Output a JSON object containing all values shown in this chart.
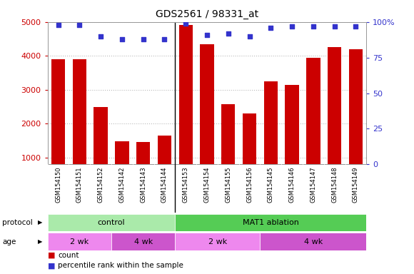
{
  "title": "GDS2561 / 98331_at",
  "samples": [
    "GSM154150",
    "GSM154151",
    "GSM154152",
    "GSM154142",
    "GSM154143",
    "GSM154144",
    "GSM154153",
    "GSM154154",
    "GSM154155",
    "GSM154156",
    "GSM154145",
    "GSM154146",
    "GSM154147",
    "GSM154148",
    "GSM154149"
  ],
  "counts": [
    3900,
    3900,
    2500,
    1480,
    1460,
    1650,
    4900,
    4350,
    2580,
    2300,
    3250,
    3150,
    3950,
    4250,
    4200
  ],
  "percentile_ranks": [
    98,
    98,
    90,
    88,
    88,
    88,
    99,
    91,
    92,
    90,
    96,
    97,
    97,
    97,
    97
  ],
  "bar_color": "#cc0000",
  "dot_color": "#3333cc",
  "ylim_left": [
    800,
    5000
  ],
  "ylim_right": [
    0,
    100
  ],
  "yticks_left": [
    1000,
    2000,
    3000,
    4000,
    5000
  ],
  "yticks_right": [
    0,
    25,
    50,
    75,
    100
  ],
  "protocol_groups": [
    {
      "label": "control",
      "start": 0,
      "end": 6,
      "color": "#aaeaaa"
    },
    {
      "label": "MAT1 ablation",
      "start": 6,
      "end": 15,
      "color": "#55cc55"
    }
  ],
  "age_groups": [
    {
      "label": "2 wk",
      "start": 0,
      "end": 3,
      "color": "#ee88ee"
    },
    {
      "label": "4 wk",
      "start": 3,
      "end": 6,
      "color": "#cc55cc"
    },
    {
      "label": "2 wk",
      "start": 6,
      "end": 10,
      "color": "#ee88ee"
    },
    {
      "label": "4 wk",
      "start": 10,
      "end": 15,
      "color": "#cc55cc"
    }
  ],
  "legend_count_color": "#cc0000",
  "legend_pct_color": "#3333cc",
  "grid_color": "#bbbbbb",
  "tick_color_left": "#cc0000",
  "tick_color_right": "#3333cc",
  "label_color_left": "#cc0000",
  "label_color_right": "#3333cc"
}
